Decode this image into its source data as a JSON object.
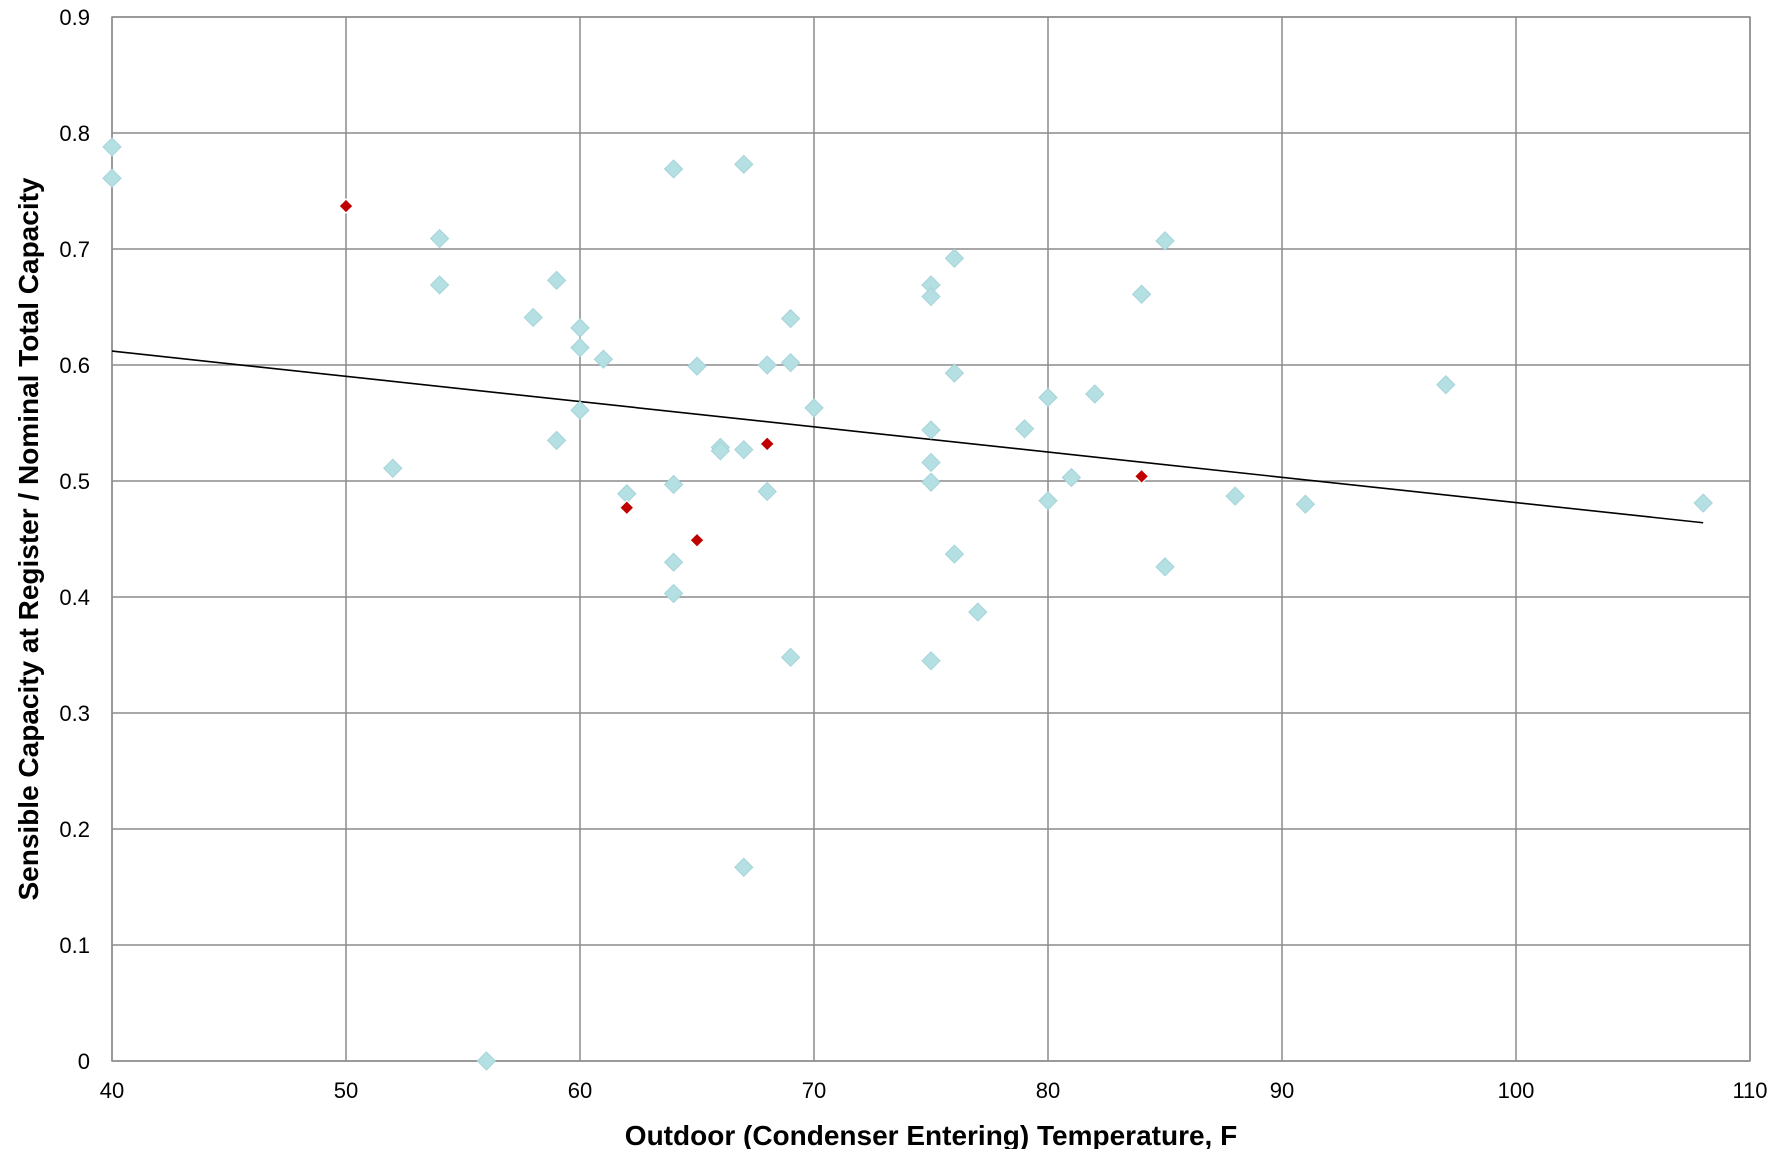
{
  "chart_data": {
    "type": "scatter",
    "title": "",
    "xlabel": "Outdoor (Condenser Entering) Temperature, F",
    "ylabel": "Sensible Capacity at Register / Nominal Total Capacity",
    "xlim": [
      40,
      110
    ],
    "ylim": [
      0,
      0.9
    ],
    "x_ticks": [
      40,
      50,
      60,
      70,
      80,
      90,
      100,
      110
    ],
    "y_ticks": [
      0,
      0.1,
      0.2,
      0.3,
      0.4,
      0.5,
      0.6,
      0.7,
      0.8,
      0.9
    ],
    "grid": true,
    "legend": "none",
    "colors": {
      "series_a": "#b4dfe3",
      "series_b": "#c00000",
      "trendline": "#000000",
      "grid": "#8c8c8c"
    },
    "series": [
      {
        "marker": "diamond",
        "color": "#b4dfe3",
        "points": [
          [
            40,
            0.788
          ],
          [
            40,
            0.761
          ],
          [
            52,
            0.511
          ],
          [
            54,
            0.709
          ],
          [
            54,
            0.669
          ],
          [
            56,
            0.0
          ],
          [
            58,
            0.641
          ],
          [
            59,
            0.673
          ],
          [
            59,
            0.535
          ],
          [
            60,
            0.632
          ],
          [
            60,
            0.615
          ],
          [
            60,
            0.561
          ],
          [
            61,
            0.605
          ],
          [
            62,
            0.489
          ],
          [
            64,
            0.769
          ],
          [
            64,
            0.497
          ],
          [
            64,
            0.43
          ],
          [
            64,
            0.403
          ],
          [
            65,
            0.599
          ],
          [
            66,
            0.529
          ],
          [
            66,
            0.526
          ],
          [
            67,
            0.773
          ],
          [
            67,
            0.527
          ],
          [
            67,
            0.167
          ],
          [
            68,
            0.6
          ],
          [
            68,
            0.491
          ],
          [
            69,
            0.64
          ],
          [
            69,
            0.602
          ],
          [
            69,
            0.348
          ],
          [
            70,
            0.563
          ],
          [
            75,
            0.669
          ],
          [
            75,
            0.659
          ],
          [
            75,
            0.544
          ],
          [
            75,
            0.516
          ],
          [
            75,
            0.499
          ],
          [
            75,
            0.345
          ],
          [
            76,
            0.692
          ],
          [
            76,
            0.593
          ],
          [
            76,
            0.437
          ],
          [
            77,
            0.387
          ],
          [
            79,
            0.545
          ],
          [
            80,
            0.572
          ],
          [
            80,
            0.483
          ],
          [
            81,
            0.503
          ],
          [
            82,
            0.575
          ],
          [
            84,
            0.661
          ],
          [
            85,
            0.707
          ],
          [
            85,
            0.426
          ],
          [
            88,
            0.487
          ],
          [
            91,
            0.48
          ],
          [
            97,
            0.583
          ],
          [
            108,
            0.481
          ]
        ]
      },
      {
        "marker": "diamond",
        "color": "#c00000",
        "points": [
          [
            50,
            0.737
          ],
          [
            62,
            0.477
          ],
          [
            65,
            0.449
          ],
          [
            68,
            0.532
          ],
          [
            84,
            0.504
          ]
        ]
      }
    ],
    "trendline": {
      "type": "linear",
      "x": [
        40,
        108
      ],
      "y": [
        0.612,
        0.464
      ]
    }
  }
}
